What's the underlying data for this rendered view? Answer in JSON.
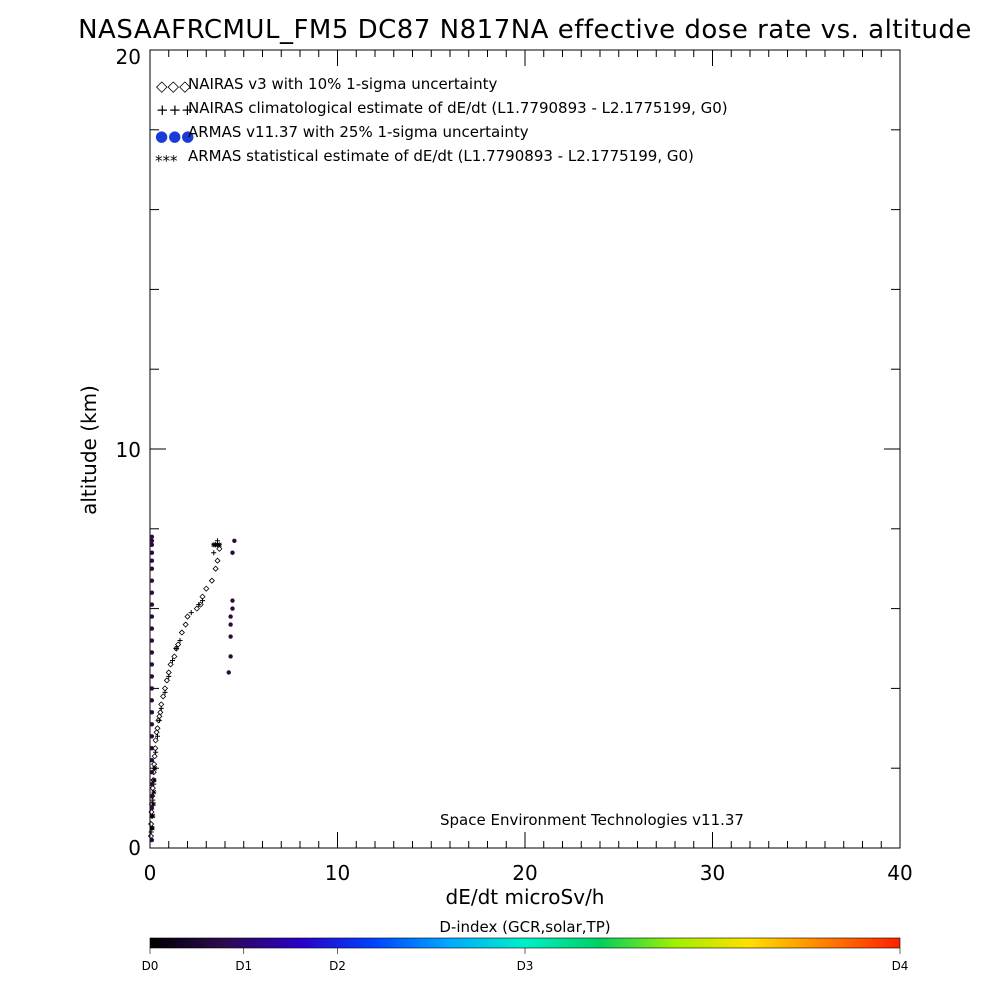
{
  "chart_data": {
    "type": "scatter",
    "title": "NASAAFRCMUL_FM5 DC87 N817NA effective dose rate vs. altitude",
    "xlabel": "dE/dt microSv/h",
    "ylabel": "altitude (km)",
    "xlim": [
      0,
      40
    ],
    "ylim": [
      0,
      20
    ],
    "x_ticks": [
      "0",
      "10",
      "20",
      "30",
      "40"
    ],
    "y_ticks": [
      "0",
      "10",
      "20"
    ],
    "legend_position": "top-left",
    "legend": [
      {
        "marker": "◇◇◇",
        "text": "NAIRAS v3 with 10% 1-sigma uncertainty"
      },
      {
        "marker": "+++",
        "text": "NAIRAS climatological estimate of dE/dt (L1.7790893 - L2.1775199, G0)"
      },
      {
        "marker": "●●●",
        "text": "ARMAS v11.37 with 25% 1-sigma uncertainty"
      },
      {
        "marker": "***",
        "text": "ARMAS statistical estimate of dE/dt (L1.7790893 - L2.1775199, G0)"
      }
    ],
    "annotation": "Space Environment Technologies v11.37",
    "series": [
      {
        "name": "NAIRAS v3 with 10% 1-sigma uncertainty",
        "color": "#000000",
        "x": [
          0.05,
          0.06,
          0.08,
          0.1,
          0.12,
          0.15,
          0.18,
          0.2,
          0.22,
          0.25,
          0.28,
          0.3,
          0.35,
          0.4,
          0.45,
          0.5,
          0.55,
          0.6,
          0.7,
          0.8,
          0.9,
          1.0,
          1.1,
          1.3,
          1.4,
          1.5,
          1.7,
          1.9,
          2.0,
          2.5,
          2.7,
          2.8,
          3.0,
          3.3,
          3.5,
          3.6,
          3.7
        ],
        "y": [
          0.3,
          0.6,
          0.9,
          1.1,
          1.3,
          1.5,
          1.7,
          1.9,
          2.1,
          2.3,
          2.5,
          2.7,
          2.9,
          3.0,
          3.2,
          3.3,
          3.4,
          3.6,
          3.8,
          4.0,
          4.2,
          4.4,
          4.6,
          4.8,
          5.0,
          5.1,
          5.4,
          5.6,
          5.8,
          6.0,
          6.1,
          6.3,
          6.5,
          6.7,
          7.0,
          7.2,
          7.5
        ]
      },
      {
        "name": "NAIRAS climatological estimate of dE/dt (L1.7790893 - L2.1775199, G0)",
        "color": "#000000",
        "x": [
          0.06,
          0.1,
          0.15,
          0.2,
          0.25,
          0.3,
          0.4,
          0.5,
          0.6,
          0.8,
          1.0,
          1.2,
          1.4,
          1.6,
          2.2,
          2.6,
          2.8,
          3.4,
          3.5,
          3.6
        ],
        "y": [
          0.4,
          0.8,
          1.2,
          1.6,
          2.0,
          2.4,
          2.8,
          3.2,
          3.5,
          3.9,
          4.3,
          4.7,
          5.0,
          5.2,
          5.9,
          6.1,
          6.2,
          7.4,
          7.6,
          7.7
        ]
      },
      {
        "name": "ARMAS v11.37 with 25% 1-sigma uncertainty",
        "color": "#2b0a3d",
        "x": [
          0.1,
          0.1,
          0.1,
          0.1,
          0.1,
          0.1,
          0.1,
          0.1,
          0.1,
          0.1,
          0.1,
          0.1,
          0.1,
          0.1,
          0.1,
          0.1,
          0.1,
          0.1,
          0.1,
          0.1,
          0.1,
          0.1,
          0.1,
          0.1,
          0.1,
          0.1,
          0.1,
          0.1,
          0.1,
          4.2,
          4.3,
          4.3,
          4.3,
          4.3,
          4.4,
          4.4,
          4.4,
          4.5
        ],
        "y": [
          0.2,
          0.5,
          0.8,
          1.0,
          1.3,
          1.6,
          1.9,
          2.2,
          2.5,
          2.8,
          3.1,
          3.4,
          3.7,
          4.0,
          4.3,
          4.6,
          4.9,
          5.2,
          5.5,
          5.8,
          6.1,
          6.4,
          6.7,
          7.0,
          7.2,
          7.4,
          7.6,
          7.7,
          7.8,
          4.4,
          4.8,
          5.3,
          5.6,
          5.8,
          6.0,
          6.2,
          7.4,
          7.7
        ]
      },
      {
        "name": "ARMAS statistical estimate of dE/dt (L1.7790893 - L2.1775199, G0)",
        "color": "#000000",
        "x": [
          0.12,
          0.15,
          0.18,
          0.2,
          0.22,
          0.25,
          3.4,
          3.5,
          3.6,
          3.7
        ],
        "y": [
          0.5,
          0.8,
          1.1,
          1.4,
          1.7,
          2.0,
          7.6,
          7.6,
          7.6,
          7.6
        ]
      }
    ]
  },
  "colorbar": {
    "title": "D-index (GCR,solar,TP)",
    "labels": [
      "D0",
      "D1",
      "D2",
      "D3",
      "D4"
    ],
    "stops": [
      0,
      0.125,
      0.25,
      0.5,
      1.0
    ],
    "gradient": [
      "#000000",
      "#2c0a52",
      "#2b00c8",
      "#0044ff",
      "#00aaff",
      "#00f0c8",
      "#00d060",
      "#a0f000",
      "#ffe000",
      "#ff8000",
      "#ff2000"
    ]
  }
}
